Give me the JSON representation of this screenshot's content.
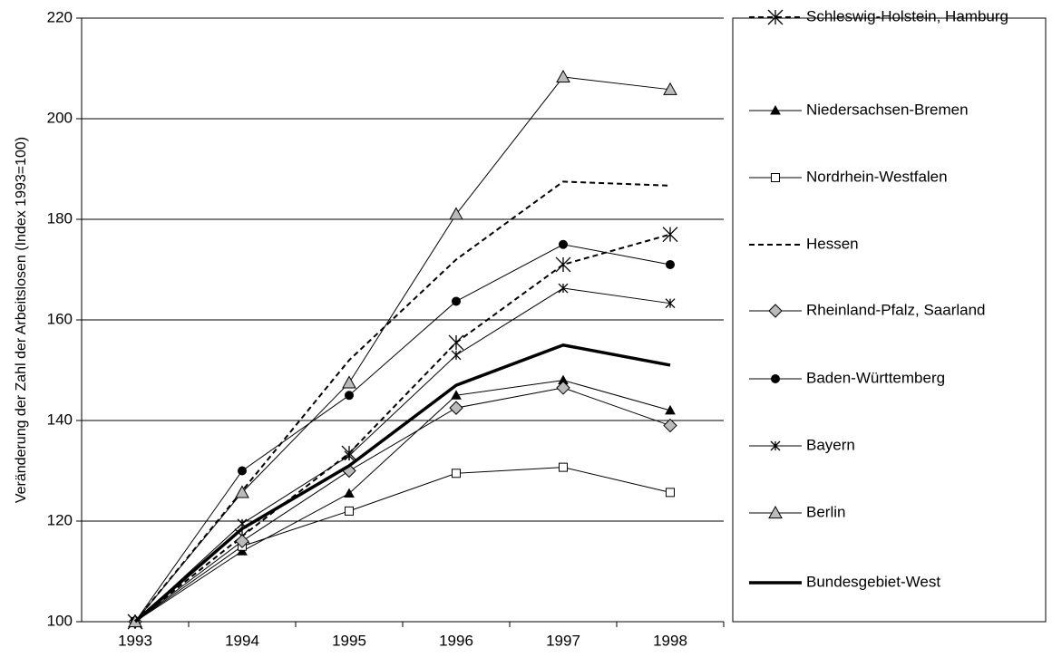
{
  "chart_data": {
    "type": "line",
    "y_label": "Veränderung der Zahl der Arbeitslosen (Index 1993=100)",
    "categories": [
      "1993",
      "1994",
      "1995",
      "1996",
      "1997",
      "1998"
    ],
    "ylim": [
      100,
      220
    ],
    "yticks": [
      100,
      120,
      140,
      160,
      180,
      200,
      220
    ],
    "grid": true,
    "legend": "right",
    "series": [
      {
        "name": "Schleswig-Holstein, Hamburg",
        "color": "#000000",
        "dash": "dashed",
        "marker": "big-asterisk",
        "values": [
          100,
          117,
          133.5,
          155.5,
          171,
          177
        ]
      },
      {
        "name": "Niedersachsen-Bremen",
        "color": "#000000",
        "dash": "solid",
        "marker": "triangle",
        "values": [
          100,
          114,
          125.5,
          145,
          148,
          142
        ]
      },
      {
        "name": "Nordrhein-Westfalen",
        "color": "#000000",
        "dash": "solid",
        "marker": "open-square",
        "values": [
          100,
          115,
          122,
          129.5,
          130.7,
          125.7
        ]
      },
      {
        "name": "Hessen",
        "color": "#000000",
        "dash": "dashed",
        "marker": "none",
        "values": [
          100,
          126,
          152,
          172,
          187.5,
          186.7
        ]
      },
      {
        "name": "Rheinland-Pfalz, Saarland",
        "color": "#000000",
        "dash": "solid",
        "marker": "gray-diamond",
        "values": [
          100,
          116,
          130,
          142.5,
          146.5,
          139
        ]
      },
      {
        "name": "Baden-Württemberg",
        "color": "#000000",
        "dash": "solid",
        "marker": "circle",
        "values": [
          100,
          130,
          145,
          163.7,
          175,
          171
        ]
      },
      {
        "name": "Bayern",
        "color": "#000000",
        "dash": "solid",
        "marker": "asterisk",
        "values": [
          100,
          119.5,
          133,
          153,
          166.3,
          163.3
        ]
      },
      {
        "name": "Berlin",
        "color": "#000000",
        "dash": "solid",
        "marker": "gray-triangle",
        "values": [
          100,
          125.7,
          147.5,
          181,
          208.3,
          205.8
        ]
      },
      {
        "name": "Bundesgebiet-West",
        "color": "#000000",
        "dash": "thick",
        "marker": "none",
        "values": [
          100,
          118.5,
          131,
          147,
          155,
          151
        ]
      }
    ]
  }
}
